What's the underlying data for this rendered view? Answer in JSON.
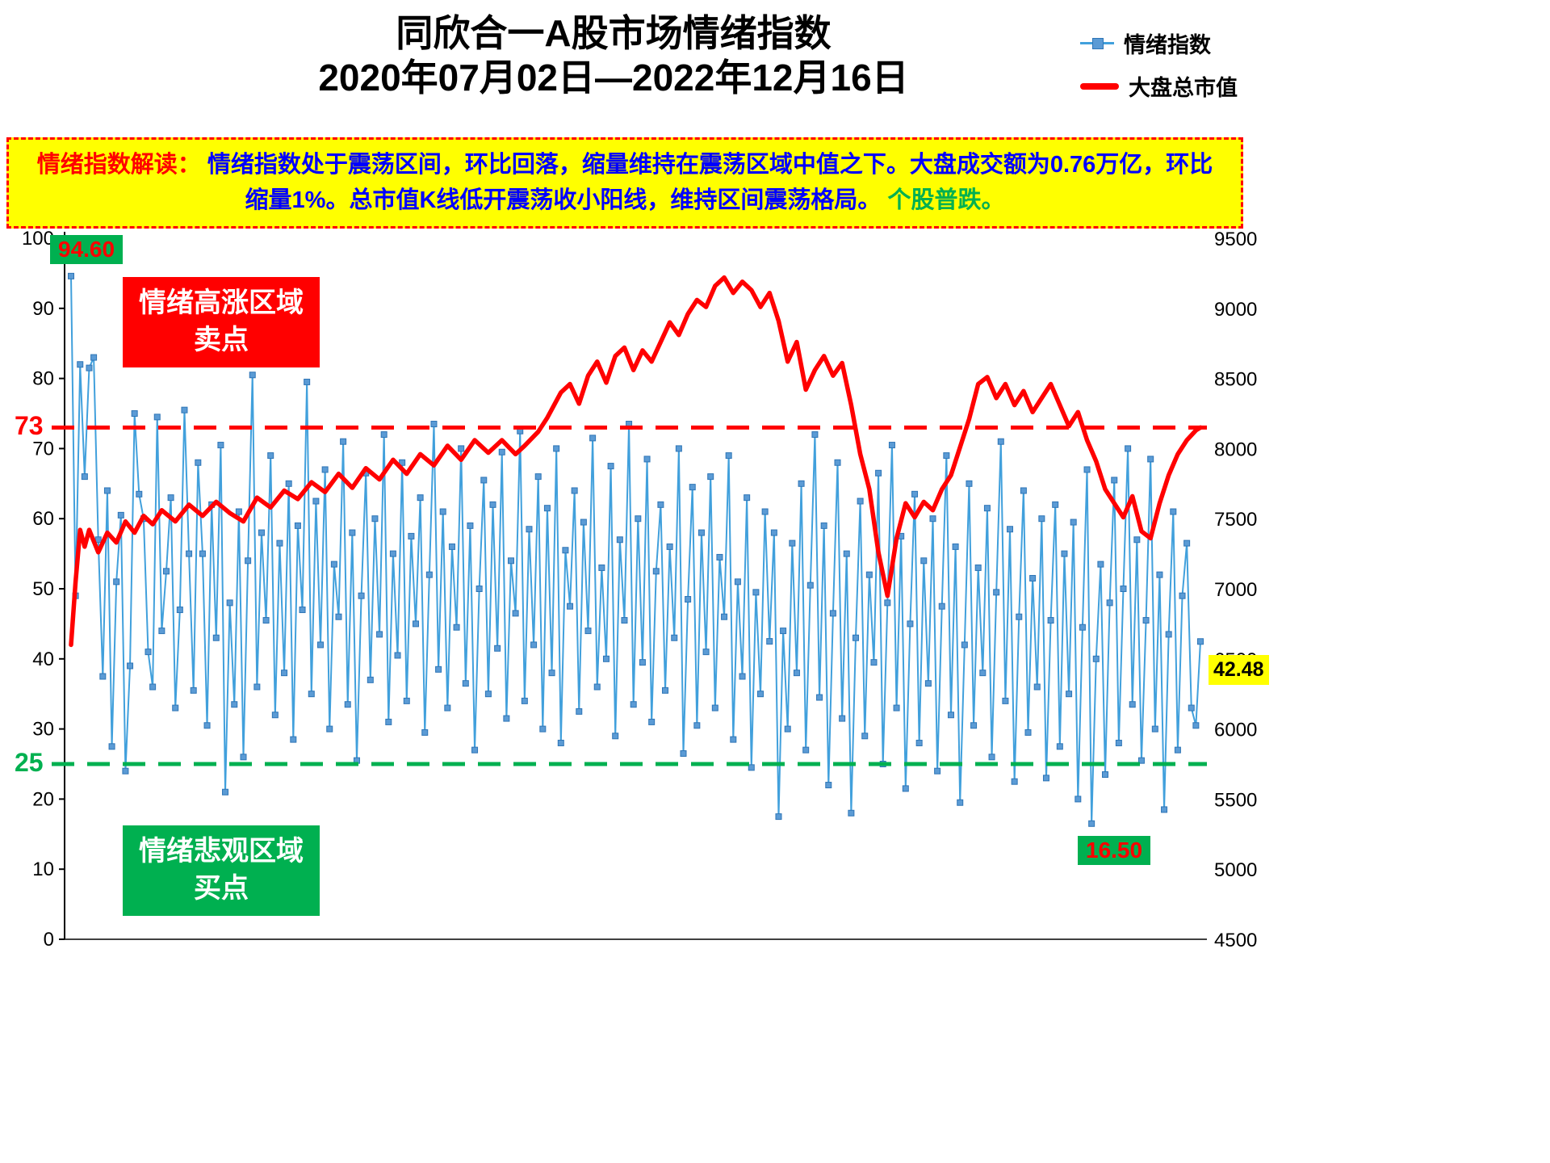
{
  "title": {
    "line1": "同欣合一A股市场情绪指数",
    "line2": "2020年07月02日—2022年12月16日"
  },
  "legend": {
    "sentiment": "情绪指数",
    "marketcap": "大盘总市值"
  },
  "interpretation": {
    "label": "情绪指数解读：",
    "body": "情绪指数处于震荡区间，环比回落，缩量维持在震荡区域中值之下。大盘成交额为0.76万亿，环比缩量1%。总市值K线低开震荡收小阳线，维持区间震荡格局。",
    "tail": "个股普跌。"
  },
  "zones": {
    "sell_line1": "情绪高涨区域",
    "sell_line2": "卖点",
    "buy_line1": "情绪悲观区域",
    "buy_line2": "买点"
  },
  "labels": {
    "first_value": "94.60",
    "low_value": "16.50",
    "last_value": "42.48",
    "threshold_high": "73",
    "threshold_low": "25"
  },
  "colors": {
    "sentiment_line": "#41A0DC",
    "sentiment_marker": "#5B9BD5",
    "sentiment_marker_edge": "#2E75B6",
    "marketcap_line": "#FF0000",
    "threshold_high": "#FF0000",
    "threshold_low": "#00B050",
    "axis": "#000000"
  },
  "chart_data": {
    "type": "line",
    "title": "同欣合一A股市场情绪指数 2020年07月02日—2022年12月16日",
    "legend_position": "top-right",
    "grid": false,
    "left_axis": {
      "label": "情绪指数",
      "min": 0,
      "max": 100,
      "ticks": [
        0,
        10,
        20,
        30,
        40,
        50,
        60,
        70,
        80,
        90,
        100
      ]
    },
    "right_axis": {
      "label": "大盘总市值",
      "min": 4500,
      "max": 9500,
      "ticks": [
        4500,
        5000,
        5500,
        6000,
        6500,
        7000,
        7500,
        8000,
        8500,
        9000,
        9500
      ]
    },
    "thresholds": [
      {
        "value": 73,
        "axis": "left",
        "color": "#FF0000",
        "style": "dashed"
      },
      {
        "value": 25,
        "axis": "left",
        "color": "#00B050",
        "style": "dashed"
      }
    ],
    "annotations": {
      "first_point": 94.6,
      "lowest_labeled_point": 16.5,
      "last_point": 42.48
    },
    "series": [
      {
        "name": "情绪指数",
        "axis": "left",
        "style": "line-with-square-markers",
        "values": [
          94.6,
          49,
          82,
          66,
          81.5,
          83,
          57,
          37.5,
          64,
          27.5,
          51,
          60.5,
          24,
          39,
          75,
          63.5,
          60,
          41,
          36,
          74.5,
          44,
          52.5,
          63,
          33,
          47,
          75.5,
          55,
          35.5,
          68,
          55,
          30.5,
          62,
          43,
          70.5,
          21,
          48,
          33.5,
          61,
          26,
          54,
          80.5,
          36,
          58,
          45.5,
          69,
          32,
          56.5,
          38,
          65,
          28.5,
          59,
          47,
          79.5,
          35,
          62.5,
          42,
          67,
          30,
          53.5,
          46,
          71,
          33.5,
          58,
          25.5,
          49,
          66.5,
          37,
          60,
          43.5,
          72,
          31,
          55,
          40.5,
          68,
          34,
          57.5,
          45,
          63,
          29.5,
          52,
          73.5,
          38.5,
          61,
          33,
          56,
          44.5,
          70,
          36.5,
          59,
          27,
          50,
          65.5,
          35,
          62,
          41.5,
          69.5,
          31.5,
          54,
          46.5,
          72.5,
          34,
          58.5,
          42,
          66,
          30,
          61.5,
          38,
          70,
          28,
          55.5,
          47.5,
          64,
          32.5,
          59.5,
          44,
          71.5,
          36,
          53,
          40,
          67.5,
          29,
          57,
          45.5,
          73.5,
          33.5,
          60,
          39.5,
          68.5,
          31,
          52.5,
          62,
          35.5,
          56,
          43,
          70,
          26.5,
          48.5,
          64.5,
          30.5,
          58,
          41,
          66,
          33,
          54.5,
          46,
          69,
          28.5,
          51,
          37.5,
          63,
          24.5,
          49.5,
          35,
          61,
          42.5,
          58,
          17.5,
          44,
          30,
          56.5,
          38,
          65,
          27,
          50.5,
          72,
          34.5,
          59,
          22,
          46.5,
          68,
          31.5,
          55,
          18,
          43,
          62.5,
          29,
          52,
          39.5,
          66.5,
          25,
          48,
          70.5,
          33,
          57.5,
          21.5,
          45,
          63.5,
          28,
          54,
          36.5,
          60,
          24,
          47.5,
          69,
          32,
          56,
          19.5,
          42,
          65,
          30.5,
          53,
          38,
          61.5,
          26,
          49.5,
          71,
          34,
          58.5,
          22.5,
          46,
          64,
          29.5,
          51.5,
          36,
          60,
          23,
          45.5,
          62,
          27.5,
          55,
          35,
          59.5,
          20,
          44.5,
          67,
          16.5,
          40,
          53.5,
          23.5,
          48,
          65.5,
          28,
          50,
          70,
          33.5,
          57,
          25.5,
          45.5,
          68.5,
          30,
          52,
          18.5,
          43.5,
          61,
          27,
          49,
          56.5,
          33,
          30.5,
          42.48
        ]
      },
      {
        "name": "大盘总市值",
        "axis": "right",
        "style": "line",
        "points": [
          [
            0,
            6600
          ],
          [
            1,
            7050
          ],
          [
            2,
            7420
          ],
          [
            3,
            7300
          ],
          [
            4,
            7420
          ],
          [
            6,
            7260
          ],
          [
            8,
            7400
          ],
          [
            10,
            7330
          ],
          [
            12,
            7480
          ],
          [
            14,
            7400
          ],
          [
            16,
            7520
          ],
          [
            18,
            7460
          ],
          [
            20,
            7560
          ],
          [
            23,
            7480
          ],
          [
            26,
            7600
          ],
          [
            29,
            7520
          ],
          [
            32,
            7620
          ],
          [
            35,
            7540
          ],
          [
            38,
            7480
          ],
          [
            41,
            7650
          ],
          [
            44,
            7580
          ],
          [
            47,
            7700
          ],
          [
            50,
            7640
          ],
          [
            53,
            7760
          ],
          [
            56,
            7690
          ],
          [
            59,
            7820
          ],
          [
            62,
            7720
          ],
          [
            65,
            7860
          ],
          [
            68,
            7780
          ],
          [
            71,
            7920
          ],
          [
            74,
            7820
          ],
          [
            77,
            7960
          ],
          [
            80,
            7880
          ],
          [
            83,
            8020
          ],
          [
            86,
            7920
          ],
          [
            89,
            8060
          ],
          [
            92,
            7970
          ],
          [
            95,
            8060
          ],
          [
            98,
            7960
          ],
          [
            100,
            8020
          ],
          [
            103,
            8120
          ],
          [
            105,
            8220
          ],
          [
            108,
            8400
          ],
          [
            110,
            8460
          ],
          [
            112,
            8320
          ],
          [
            114,
            8520
          ],
          [
            116,
            8620
          ],
          [
            118,
            8470
          ],
          [
            120,
            8660
          ],
          [
            122,
            8720
          ],
          [
            124,
            8560
          ],
          [
            126,
            8700
          ],
          [
            128,
            8620
          ],
          [
            130,
            8760
          ],
          [
            132,
            8900
          ],
          [
            134,
            8810
          ],
          [
            136,
            8960
          ],
          [
            138,
            9060
          ],
          [
            140,
            9010
          ],
          [
            142,
            9160
          ],
          [
            144,
            9220
          ],
          [
            146,
            9110
          ],
          [
            148,
            9190
          ],
          [
            150,
            9130
          ],
          [
            152,
            9010
          ],
          [
            154,
            9110
          ],
          [
            156,
            8910
          ],
          [
            158,
            8620
          ],
          [
            160,
            8760
          ],
          [
            162,
            8420
          ],
          [
            164,
            8560
          ],
          [
            166,
            8660
          ],
          [
            168,
            8520
          ],
          [
            170,
            8610
          ],
          [
            172,
            8310
          ],
          [
            174,
            7960
          ],
          [
            176,
            7710
          ],
          [
            178,
            7260
          ],
          [
            180,
            6950
          ],
          [
            182,
            7360
          ],
          [
            184,
            7610
          ],
          [
            186,
            7510
          ],
          [
            188,
            7620
          ],
          [
            190,
            7560
          ],
          [
            192,
            7710
          ],
          [
            194,
            7810
          ],
          [
            196,
            8010
          ],
          [
            198,
            8210
          ],
          [
            200,
            8460
          ],
          [
            202,
            8510
          ],
          [
            204,
            8360
          ],
          [
            206,
            8460
          ],
          [
            208,
            8310
          ],
          [
            210,
            8410
          ],
          [
            212,
            8260
          ],
          [
            214,
            8360
          ],
          [
            216,
            8460
          ],
          [
            218,
            8310
          ],
          [
            220,
            8160
          ],
          [
            222,
            8260
          ],
          [
            224,
            8060
          ],
          [
            226,
            7910
          ],
          [
            228,
            7710
          ],
          [
            230,
            7610
          ],
          [
            232,
            7510
          ],
          [
            234,
            7660
          ],
          [
            236,
            7410
          ],
          [
            238,
            7360
          ],
          [
            240,
            7610
          ],
          [
            242,
            7810
          ],
          [
            244,
            7960
          ],
          [
            246,
            8060
          ],
          [
            248,
            8130
          ],
          [
            249,
            8150
          ]
        ]
      }
    ]
  }
}
